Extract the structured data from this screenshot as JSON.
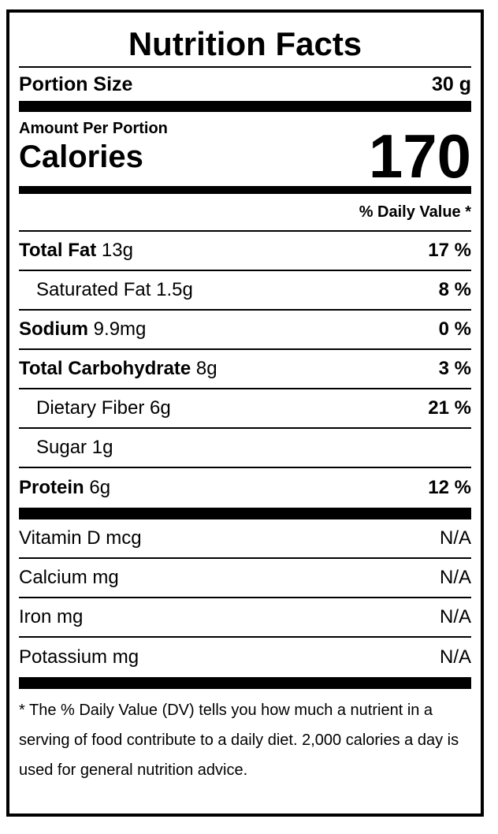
{
  "label": {
    "title": "Nutrition Facts",
    "portion": {
      "name": "Portion Size",
      "value": "30 g"
    },
    "amount_per_label": "Amount Per Portion",
    "calories_label": "Calories",
    "calories_value": "170",
    "daily_value_header": "% Daily Value *",
    "nutrients": [
      {
        "name": "Total Fat",
        "amount": "13g",
        "dv": "17 %"
      },
      {
        "name": "Saturated Fat",
        "amount": "1.5g",
        "dv": "8 %"
      },
      {
        "name": "Sodium",
        "amount": "9.9mg",
        "dv": "0 %"
      },
      {
        "name": "Total Carbohydrate",
        "amount": "8g",
        "dv": "3 %"
      },
      {
        "name": "Dietary Fiber",
        "amount": "6g",
        "dv": "21 %"
      },
      {
        "name": "Sugar",
        "amount": "1g",
        "dv": ""
      },
      {
        "name": "Protein",
        "amount": "6g",
        "dv": "12 %"
      }
    ],
    "micronutrients": [
      {
        "name": "Vitamin D mcg",
        "value": "N/A"
      },
      {
        "name": "Calcium mg",
        "value": "N/A"
      },
      {
        "name": "Iron mg",
        "value": "N/A"
      },
      {
        "name": "Potassium mg",
        "value": "N/A"
      }
    ],
    "footnote": "* The % Daily Value (DV) tells you how much a nutrient in a serving of food contribute to a daily diet. 2,000 calories a day is used for general nutrition advice.",
    "colors": {
      "ink": "#000000",
      "background": "#ffffff"
    }
  }
}
